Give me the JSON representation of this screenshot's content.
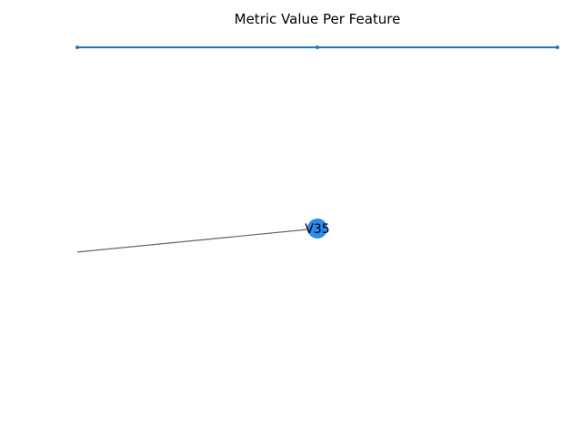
{
  "chart_data": {
    "type": "line",
    "title": "Metric Value Per Feature",
    "xlabel": "",
    "ylabel": "",
    "grid": false,
    "series": [
      {
        "x": [
          0,
          1,
          2
        ],
        "values": [
          1,
          1,
          1
        ],
        "color": "#1f77b4",
        "markers": true
      }
    ],
    "annotations": [
      {
        "label": "V35",
        "x": 1,
        "y": 0.5,
        "node_color": "#2b8cee",
        "connector_to": {
          "x": 0,
          "y": 0.435
        },
        "connector_color": "#666666"
      }
    ]
  }
}
